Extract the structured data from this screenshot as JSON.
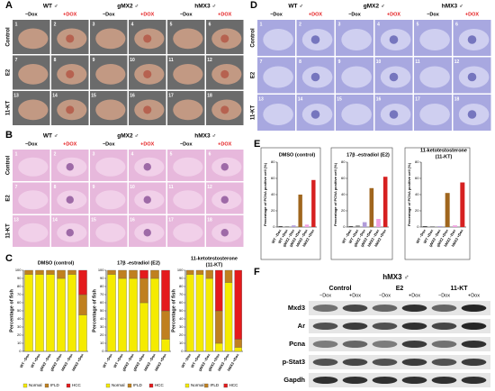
{
  "panels": {
    "A": {
      "label": "A",
      "groups": [
        "WT ♂",
        "gMX2 ♂",
        "hMX3 ♂"
      ],
      "conditions": [
        "−Dox",
        "+DOX"
      ],
      "rows": [
        "Control",
        "E2",
        "11-KT"
      ],
      "numbers": [
        1,
        2,
        3,
        4,
        5,
        6,
        7,
        8,
        9,
        10,
        11,
        12,
        13,
        14,
        15,
        16,
        17,
        18
      ]
    },
    "B": {
      "label": "B",
      "groups": [
        "WT ♂",
        "gMX2 ♂",
        "hMX3 ♂"
      ],
      "conditions": [
        "−Dox",
        "+DOX"
      ],
      "rows": [
        "Control",
        "E2",
        "11-KT"
      ],
      "numbers": [
        1,
        2,
        3,
        4,
        5,
        6,
        7,
        8,
        9,
        10,
        11,
        12,
        13,
        14,
        15,
        16,
        17,
        18
      ]
    },
    "C": {
      "label": "C"
    },
    "D": {
      "label": "D",
      "groups": [
        "WT ♂",
        "gMX2 ♂",
        "hMX3 ♂"
      ],
      "conditions": [
        "−Dox",
        "+DOX"
      ],
      "rows": [
        "Control",
        "E2",
        "11-KT"
      ],
      "numbers": [
        1,
        2,
        3,
        4,
        5,
        6,
        7,
        8,
        9,
        10,
        11,
        12,
        13,
        14,
        15,
        16,
        17,
        18
      ]
    },
    "E": {
      "label": "E"
    },
    "F": {
      "label": "F",
      "title": "hMX3 ♂",
      "groups": [
        "Control",
        "E2",
        "11-KT"
      ],
      "conditions": [
        "−Dox",
        "+Dox"
      ],
      "proteins": [
        "Mxd3",
        "Ar",
        "Pcna",
        "p-Stat3",
        "Gapdh"
      ]
    }
  },
  "chart_data": [
    {
      "type": "bar",
      "stacked": true,
      "title": "DMSO (control)",
      "ylabel": "Percentage of fish",
      "categories": [
        "WT −Dox",
        "WT +Dox",
        "gMX2 −Dox",
        "gMX2 +Dox",
        "hMX3 −Dox",
        "hMX3 +Dox"
      ],
      "series": [
        {
          "name": "Normal",
          "color": "#f5eb00",
          "values": [
            95,
            95,
            95,
            90,
            95,
            45
          ]
        },
        {
          "name": "IFLD",
          "color": "#c0801f",
          "values": [
            5,
            5,
            5,
            10,
            5,
            25
          ]
        },
        {
          "name": "HCC",
          "color": "#e41a1c",
          "values": [
            0,
            0,
            0,
            0,
            0,
            30
          ]
        }
      ],
      "ylim": [
        0,
        100
      ],
      "yticks": [
        0,
        10,
        20,
        30,
        40,
        50,
        60,
        70,
        80,
        90,
        100
      ]
    },
    {
      "type": "bar",
      "stacked": true,
      "title": "17β -estradiol (E2)",
      "ylabel": "Percentage of fish",
      "categories": [
        "WT −Dox",
        "WT +Dox",
        "gMX2 −Dox",
        "gMX2 +Dox",
        "hMX3 −Dox",
        "hMX3 +Dox"
      ],
      "series": [
        {
          "name": "Normal",
          "color": "#f5eb00",
          "values": [
            95,
            90,
            90,
            60,
            90,
            15
          ]
        },
        {
          "name": "IFLD",
          "color": "#c0801f",
          "values": [
            5,
            10,
            10,
            30,
            10,
            35
          ]
        },
        {
          "name": "HCC",
          "color": "#e41a1c",
          "values": [
            0,
            0,
            0,
            10,
            0,
            50
          ]
        }
      ],
      "ylim": [
        0,
        100
      ],
      "yticks": [
        0,
        10,
        20,
        30,
        40,
        50,
        60,
        70,
        80,
        90,
        100
      ]
    },
    {
      "type": "bar",
      "stacked": true,
      "title": "11-ketotestosterone",
      "subtitle": "(11-KT)",
      "ylabel": "Percentage of fish",
      "categories": [
        "WT −Dox",
        "WT +Dox",
        "gMX2 −Dox",
        "gMX2 +Dox",
        "hMX3 −Dox",
        "hMX3 +Dox"
      ],
      "series": [
        {
          "name": "Normal",
          "color": "#f5eb00",
          "values": [
            95,
            95,
            90,
            10,
            85,
            5
          ]
        },
        {
          "name": "IFLD",
          "color": "#c0801f",
          "values": [
            5,
            5,
            10,
            40,
            15,
            10
          ]
        },
        {
          "name": "HCC",
          "color": "#e41a1c",
          "values": [
            0,
            0,
            0,
            50,
            0,
            85
          ]
        }
      ],
      "ylim": [
        0,
        100
      ],
      "yticks": [
        0,
        10,
        20,
        30,
        40,
        50,
        60,
        70,
        80,
        90,
        100
      ]
    },
    {
      "type": "bar",
      "title": "DMSO (control)",
      "ylabel": "Percentage of PCNA positive cell (%)",
      "categories": [
        "WT −Dox",
        "WT +Dox",
        "gMX2 −Dox",
        "gMX2 +Dox",
        "hMX3 −Dox",
        "hMX3 +Dox"
      ],
      "values": [
        1,
        1,
        2,
        40,
        3,
        58
      ],
      "colors": [
        "#333333",
        "#8c8c8c",
        "#b19cd9",
        "#a0661e",
        "#f0a0e0",
        "#d62020"
      ],
      "ylim": [
        0,
        80
      ],
      "yticks": [
        0,
        20,
        40,
        60,
        80
      ]
    },
    {
      "type": "bar",
      "title": "17β -estradiol (E2)",
      "ylabel": "Percentage of PCNA positive cell (%)",
      "categories": [
        "WT −Dox",
        "WT +Dox",
        "gMX2 −Dox",
        "gMX2 +Dox",
        "hMX3 −Dox",
        "hMX3 +Dox"
      ],
      "values": [
        1,
        2,
        6,
        48,
        10,
        62
      ],
      "colors": [
        "#333333",
        "#8c8c8c",
        "#b19cd9",
        "#a0661e",
        "#f0a0e0",
        "#d62020"
      ],
      "ylim": [
        0,
        80
      ],
      "yticks": [
        0,
        20,
        40,
        60,
        80
      ]
    },
    {
      "type": "bar",
      "title": "11-ketotestosterone",
      "subtitle": "(11-KT)",
      "ylabel": "Percentage of PCNA positive cell (%)",
      "categories": [
        "WT −Dox",
        "WT +Dox",
        "gMX2 −Dox",
        "gMX2 +Dox",
        "hMX3 −Dox",
        "hMX3 +Dox"
      ],
      "values": [
        1,
        1,
        1,
        42,
        2,
        55
      ],
      "colors": [
        "#333333",
        "#8c8c8c",
        "#b19cd9",
        "#a0661e",
        "#f0a0e0",
        "#d62020"
      ],
      "ylim": [
        0,
        80
      ],
      "yticks": [
        0,
        20,
        40,
        60,
        80
      ]
    }
  ]
}
